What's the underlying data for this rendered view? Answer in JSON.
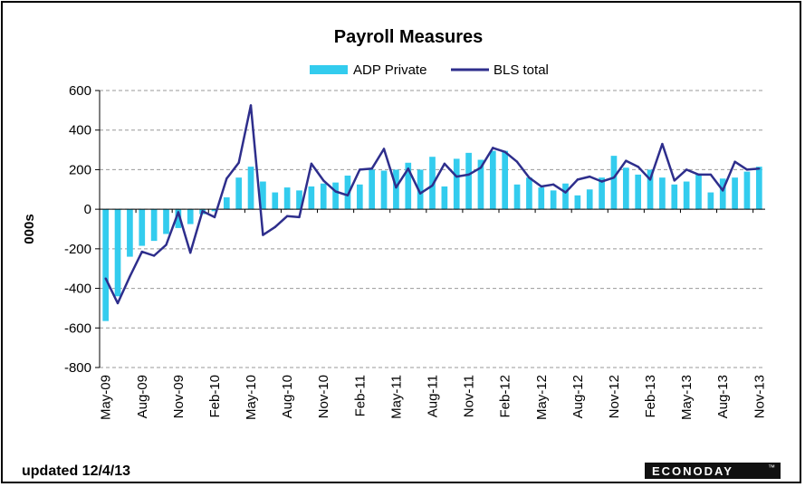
{
  "chart_data": {
    "type": "bar",
    "title": "Payroll Measures",
    "ylabel": "000s",
    "xlabel": "",
    "ylim": [
      -800,
      600
    ],
    "yticks": [
      600,
      400,
      200,
      0,
      -200,
      -400,
      -600,
      -800
    ],
    "grid": true,
    "legend_position": "top",
    "categories": [
      "May-09",
      "Jun-09",
      "Jul-09",
      "Aug-09",
      "Sep-09",
      "Oct-09",
      "Nov-09",
      "Dec-09",
      "Jan-10",
      "Feb-10",
      "Mar-10",
      "Apr-10",
      "May-10",
      "Jun-10",
      "Jul-10",
      "Aug-10",
      "Sep-10",
      "Oct-10",
      "Nov-10",
      "Dec-10",
      "Jan-11",
      "Feb-11",
      "Mar-11",
      "Apr-11",
      "May-11",
      "Jun-11",
      "Jul-11",
      "Aug-11",
      "Sep-11",
      "Oct-11",
      "Nov-11",
      "Dec-11",
      "Jan-12",
      "Feb-12",
      "Mar-12",
      "Apr-12",
      "May-12",
      "Jun-12",
      "Jul-12",
      "Aug-12",
      "Sep-12",
      "Oct-12",
      "Nov-12",
      "Dec-12",
      "Jan-13",
      "Feb-13",
      "Mar-13",
      "Apr-13",
      "May-13",
      "Jun-13",
      "Jul-13",
      "Aug-13",
      "Sep-13",
      "Oct-13",
      "Nov-13"
    ],
    "tick_labels": [
      "May-09",
      "Aug-09",
      "Nov-09",
      "Feb-10",
      "May-10",
      "Aug-10",
      "Nov-10",
      "Feb-11",
      "May-11",
      "Aug-11",
      "Nov-11",
      "Feb-12",
      "May-12",
      "Aug-12",
      "Nov-12",
      "Feb-13",
      "May-13",
      "Aug-13",
      "Nov-13"
    ],
    "series": [
      {
        "name": "ADP Private",
        "type": "bar",
        "color": "#33CCEE",
        "values": [
          -565,
          -440,
          -240,
          -185,
          -160,
          -125,
          -95,
          -75,
          -25,
          -10,
          60,
          160,
          215,
          140,
          85,
          110,
          95,
          115,
          130,
          135,
          170,
          125,
          200,
          195,
          200,
          235,
          200,
          265,
          115,
          255,
          285,
          250,
          295,
          295,
          125,
          160,
          110,
          95,
          130,
          70,
          100,
          160,
          270,
          210,
          175,
          200,
          160,
          125,
          140,
          180,
          85,
          155,
          160,
          190,
          215
        ]
      },
      {
        "name": "BLS total",
        "type": "line",
        "color": "#2E2E8C",
        "values": [
          -350,
          -475,
          -340,
          -215,
          -235,
          -180,
          -15,
          -220,
          -10,
          -40,
          155,
          235,
          525,
          -130,
          -90,
          -35,
          -40,
          230,
          145,
          90,
          70,
          200,
          205,
          305,
          110,
          205,
          80,
          120,
          230,
          165,
          175,
          210,
          310,
          290,
          240,
          160,
          115,
          125,
          85,
          150,
          165,
          140,
          160,
          245,
          215,
          150,
          330,
          145,
          200,
          175,
          175,
          95,
          240,
          200,
          205
        ]
      }
    ]
  },
  "footer": {
    "updated": "updated 12/4/13"
  },
  "logo": {
    "text": "ECONODAY",
    "mark": "™"
  },
  "colors": {
    "bar": "#33CCEE",
    "line": "#2E2E8C",
    "grid": "#999999",
    "background": "#FFFFFF"
  }
}
